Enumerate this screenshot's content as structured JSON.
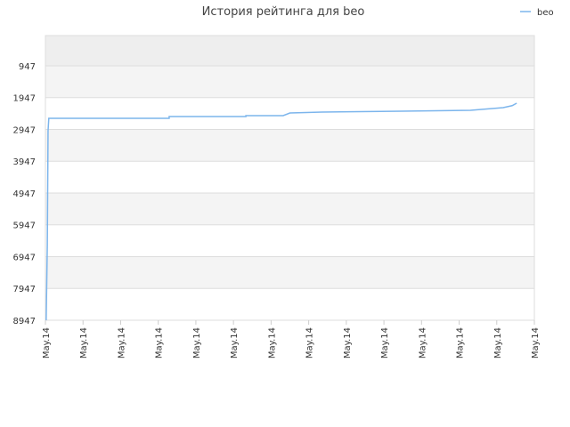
{
  "chart_data": {
    "type": "line",
    "title": "История рейтинга для beo",
    "x": [
      0.02,
      0.05,
      0.07,
      0.09,
      3.29,
      3.29,
      5.33,
      5.33,
      6.32,
      6.5,
      7.35,
      9.45,
      11.3,
      12.17,
      12.41,
      12.53
    ],
    "series": [
      {
        "name": "beo",
        "color": "#7cb5ec",
        "values": [
          8947,
          6600,
          3000,
          2597,
          2597,
          2541,
          2541,
          2513,
          2513,
          2430,
          2402,
          2374,
          2346,
          2262,
          2200,
          2122
        ]
      }
    ],
    "xlim": [
      0,
      13
    ],
    "xticks": [
      {
        "value": 0,
        "label": "May.14"
      },
      {
        "value": 1,
        "label": "May.14"
      },
      {
        "value": 2,
        "label": "May.14"
      },
      {
        "value": 3,
        "label": "May.14"
      },
      {
        "value": 4,
        "label": "May.14"
      },
      {
        "value": 5,
        "label": "May.14"
      },
      {
        "value": 6,
        "label": "May.14"
      },
      {
        "value": 7,
        "label": "May.14"
      },
      {
        "value": 8,
        "label": "May.14"
      },
      {
        "value": 9,
        "label": "May.14"
      },
      {
        "value": 10,
        "label": "May.14"
      },
      {
        "value": 11,
        "label": "May.14"
      },
      {
        "value": 12,
        "label": "May.14"
      },
      {
        "value": 13,
        "label": "May.14"
      }
    ],
    "ylim": [
      8947,
      -4
    ],
    "yticks": [
      947,
      1947,
      2947,
      3947,
      4947,
      5947,
      6947,
      7947,
      8947
    ],
    "grid": true,
    "legend": "top-right"
  }
}
